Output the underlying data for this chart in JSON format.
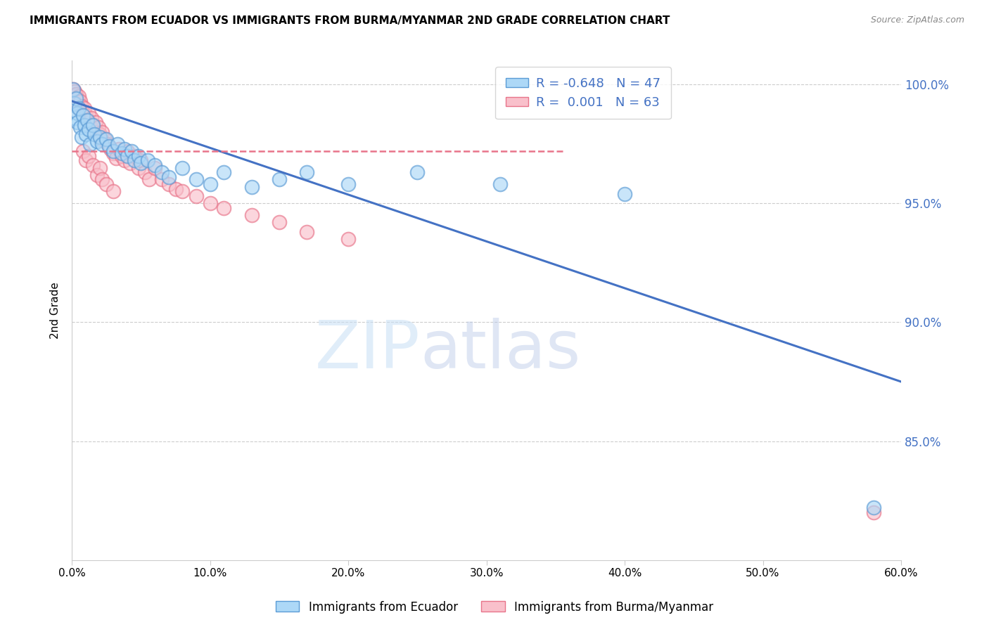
{
  "title": "IMMIGRANTS FROM ECUADOR VS IMMIGRANTS FROM BURMA/MYANMAR 2ND GRADE CORRELATION CHART",
  "source": "Source: ZipAtlas.com",
  "ylabel": "2nd Grade",
  "watermark_zip": "ZIP",
  "watermark_atlas": "atlas",
  "legend_ecuador_R": "-0.648",
  "legend_ecuador_N": "47",
  "legend_burma_R": "0.001",
  "legend_burma_N": "63",
  "xlim": [
    0.0,
    0.6
  ],
  "ylim": [
    0.8,
    1.01
  ],
  "yticks": [
    0.85,
    0.9,
    0.95,
    1.0
  ],
  "ytick_labels": [
    "85.0%",
    "90.0%",
    "95.0%",
    "100.0%"
  ],
  "xticks": [
    0.0,
    0.1,
    0.2,
    0.3,
    0.4,
    0.5,
    0.6
  ],
  "ecuador_color": "#ADD8F7",
  "burma_color": "#F9C0CB",
  "ecuador_edge_color": "#5B9BD5",
  "burma_edge_color": "#E8748A",
  "ecuador_line_color": "#4472C4",
  "burma_line_color": "#E8748A",
  "grid_color": "#CCCCCC",
  "ecuador_scatter_x": [
    0.001,
    0.002,
    0.002,
    0.003,
    0.004,
    0.004,
    0.005,
    0.006,
    0.007,
    0.008,
    0.009,
    0.01,
    0.011,
    0.012,
    0.013,
    0.015,
    0.016,
    0.018,
    0.02,
    0.022,
    0.025,
    0.027,
    0.03,
    0.033,
    0.036,
    0.038,
    0.04,
    0.043,
    0.045,
    0.048,
    0.05,
    0.055,
    0.06,
    0.065,
    0.07,
    0.08,
    0.09,
    0.1,
    0.11,
    0.13,
    0.15,
    0.17,
    0.2,
    0.25,
    0.31,
    0.4,
    0.58
  ],
  "ecuador_scatter_y": [
    0.998,
    0.992,
    0.986,
    0.994,
    0.988,
    0.984,
    0.99,
    0.982,
    0.978,
    0.987,
    0.983,
    0.979,
    0.985,
    0.981,
    0.975,
    0.983,
    0.979,
    0.976,
    0.978,
    0.975,
    0.977,
    0.974,
    0.972,
    0.975,
    0.971,
    0.973,
    0.97,
    0.972,
    0.968,
    0.97,
    0.967,
    0.968,
    0.966,
    0.963,
    0.961,
    0.965,
    0.96,
    0.958,
    0.963,
    0.957,
    0.96,
    0.963,
    0.958,
    0.963,
    0.958,
    0.954,
    0.822
  ],
  "burma_scatter_x": [
    0.001,
    0.001,
    0.002,
    0.002,
    0.003,
    0.003,
    0.004,
    0.005,
    0.005,
    0.006,
    0.007,
    0.008,
    0.009,
    0.01,
    0.011,
    0.012,
    0.013,
    0.014,
    0.015,
    0.016,
    0.017,
    0.018,
    0.019,
    0.02,
    0.021,
    0.022,
    0.024,
    0.026,
    0.028,
    0.03,
    0.032,
    0.034,
    0.036,
    0.038,
    0.04,
    0.042,
    0.045,
    0.048,
    0.05,
    0.053,
    0.056,
    0.06,
    0.065,
    0.07,
    0.075,
    0.08,
    0.09,
    0.1,
    0.11,
    0.13,
    0.15,
    0.17,
    0.2,
    0.008,
    0.01,
    0.012,
    0.015,
    0.018,
    0.02,
    0.022,
    0.025,
    0.03,
    0.58
  ],
  "burma_scatter_y": [
    0.998,
    0.995,
    0.997,
    0.993,
    0.996,
    0.992,
    0.994,
    0.995,
    0.99,
    0.993,
    0.991,
    0.988,
    0.99,
    0.987,
    0.985,
    0.988,
    0.984,
    0.986,
    0.983,
    0.981,
    0.984,
    0.98,
    0.982,
    0.979,
    0.977,
    0.98,
    0.977,
    0.975,
    0.973,
    0.971,
    0.969,
    0.973,
    0.97,
    0.968,
    0.972,
    0.967,
    0.97,
    0.965,
    0.968,
    0.963,
    0.96,
    0.965,
    0.96,
    0.958,
    0.956,
    0.955,
    0.953,
    0.95,
    0.948,
    0.945,
    0.942,
    0.938,
    0.935,
    0.972,
    0.968,
    0.97,
    0.966,
    0.962,
    0.965,
    0.96,
    0.958,
    0.955,
    0.82
  ],
  "ecuador_trend_x": [
    0.0,
    0.6
  ],
  "ecuador_trend_y": [
    0.993,
    0.875
  ],
  "burma_trend_x": [
    0.0,
    0.355
  ],
  "burma_trend_y": [
    0.972,
    0.972
  ]
}
